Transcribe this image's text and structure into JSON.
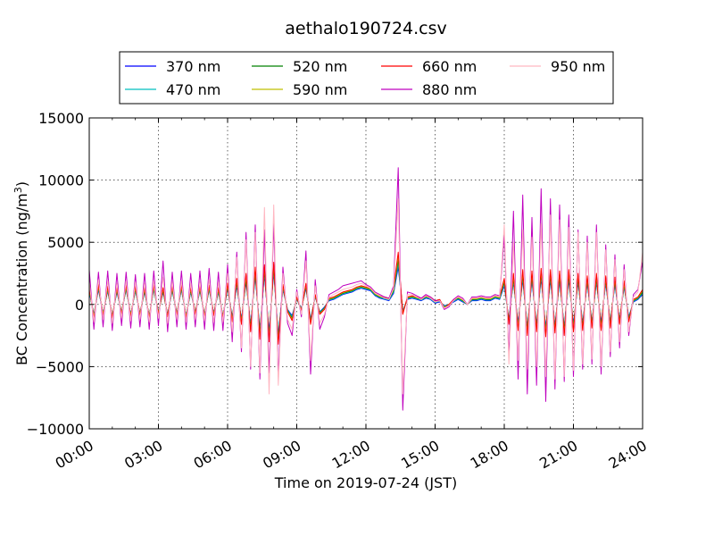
{
  "chart_data": {
    "type": "line",
    "title": "aethalo190724.csv",
    "xlabel": "Time on 2019-07-24 (JST)",
    "ylabel_main": "BC Concentration (ng/m",
    "ylabel_sup": "3",
    "ylabel_close": ")",
    "xlim": [
      0,
      24
    ],
    "ylim": [
      -10000,
      15000
    ],
    "grid": true,
    "legend_position": "top-center",
    "x_ticks": [
      0,
      3,
      6,
      9,
      12,
      15,
      18,
      21,
      24
    ],
    "x_tick_labels": [
      "00:00",
      "03:00",
      "06:00",
      "09:00",
      "12:00",
      "15:00",
      "18:00",
      "21:00",
      "24:00"
    ],
    "y_ticks": [
      -10000,
      -5000,
      0,
      5000,
      10000,
      15000
    ],
    "y_tick_labels": [
      "−10000",
      "−5000",
      "0",
      "5000",
      "10000",
      "15000"
    ],
    "x_hours": [
      0.0,
      0.2,
      0.4,
      0.6,
      0.8,
      1.0,
      1.2,
      1.4,
      1.6,
      1.8,
      2.0,
      2.2,
      2.4,
      2.6,
      2.8,
      3.0,
      3.2,
      3.4,
      3.6,
      3.8,
      4.0,
      4.2,
      4.4,
      4.6,
      4.8,
      5.0,
      5.2,
      5.4,
      5.6,
      5.8,
      6.0,
      6.2,
      6.4,
      6.6,
      6.8,
      7.0,
      7.2,
      7.4,
      7.6,
      7.8,
      8.0,
      8.2,
      8.4,
      8.6,
      8.8,
      9.0,
      9.2,
      9.4,
      9.6,
      9.8,
      10.0,
      10.2,
      10.4,
      10.6,
      10.8,
      11.0,
      11.2,
      11.4,
      11.6,
      11.8,
      12.0,
      12.2,
      12.4,
      12.6,
      12.8,
      13.0,
      13.2,
      13.4,
      13.6,
      13.8,
      14.0,
      14.2,
      14.4,
      14.6,
      14.8,
      15.0,
      15.2,
      15.4,
      15.6,
      15.8,
      16.0,
      16.2,
      16.4,
      16.6,
      16.8,
      17.0,
      17.2,
      17.4,
      17.6,
      17.8,
      18.0,
      18.2,
      18.4,
      18.6,
      18.8,
      19.0,
      19.2,
      19.4,
      19.6,
      19.8,
      20.0,
      20.2,
      20.4,
      20.6,
      20.8,
      21.0,
      21.2,
      21.4,
      21.6,
      21.8,
      22.0,
      22.2,
      22.4,
      22.6,
      22.8,
      23.0,
      23.2,
      23.4,
      23.6,
      23.8,
      24.0
    ],
    "series": [
      {
        "name": "370 nm",
        "color": "#0000ff",
        "values": [
          1000,
          -800,
          1200,
          -700,
          1100,
          -900,
          1000,
          -600,
          1200,
          -800,
          1100,
          -700,
          1000,
          -900,
          1200,
          -600,
          1000,
          -800,
          1100,
          -700,
          1200,
          -900,
          1000,
          -600,
          1100,
          -800,
          1200,
          -700,
          1000,
          -900,
          1300,
          -1000,
          1500,
          -1200,
          1800,
          -1600,
          2200,
          -2000,
          2400,
          -2200,
          2600,
          -2400,
          1200,
          -400,
          -900,
          400,
          -300,
          1300,
          -1200,
          600,
          -600,
          -200,
          300,
          400,
          600,
          800,
          900,
          1000,
          1200,
          1300,
          1200,
          1100,
          700,
          500,
          400,
          300,
          900,
          3000,
          -500,
          400,
          500,
          400,
          300,
          500,
          400,
          100,
          200,
          -100,
          0,
          200,
          400,
          200,
          0,
          300,
          300,
          400,
          300,
          300,
          500,
          400,
          1500,
          -1200,
          1800,
          -1500,
          2000,
          -1800,
          1900,
          -1600,
          2100,
          -1900,
          2000,
          -1700,
          1900,
          -1800,
          2000,
          -1600,
          1800,
          -1500,
          1700,
          -1400,
          1800,
          -1500,
          1700,
          -1400,
          1600,
          -1200,
          1400,
          -1000,
          200,
          400,
          800
        ]
      },
      {
        "name": "470 nm",
        "color": "#00bfbf",
        "values": [
          1100,
          -900,
          1300,
          -750,
          1150,
          -950,
          1100,
          -650,
          1250,
          -850,
          1150,
          -750,
          1100,
          -950,
          1250,
          -650,
          1050,
          -850,
          1150,
          -750,
          1250,
          -950,
          1050,
          -650,
          1150,
          -850,
          1250,
          -750,
          1050,
          -950,
          1400,
          -1100,
          1650,
          -1300,
          1950,
          -1750,
          2400,
          -2200,
          2600,
          -2400,
          2800,
          -2600,
          1300,
          -450,
          -1000,
          450,
          -350,
          1400,
          -1300,
          650,
          -650,
          -250,
          350,
          450,
          650,
          850,
          950,
          1050,
          1250,
          1350,
          1250,
          1150,
          750,
          550,
          450,
          350,
          1000,
          3300,
          -600,
          450,
          550,
          450,
          350,
          550,
          450,
          150,
          250,
          -150,
          0,
          250,
          450,
          250,
          0,
          350,
          350,
          450,
          350,
          350,
          550,
          450,
          1650,
          -1300,
          1950,
          -1650,
          2200,
          -1950,
          2100,
          -1750,
          2300,
          -2050,
          2200,
          -1850,
          2100,
          -1950,
          2200,
          -1750,
          1950,
          -1650,
          1850,
          -1500,
          1950,
          -1650,
          1850,
          -1500,
          1750,
          -1300,
          1500,
          -1100,
          250,
          450,
          900
        ]
      },
      {
        "name": "520 nm",
        "color": "#008000",
        "values": [
          1200,
          -950,
          1400,
          -800,
          1250,
          -1000,
          1150,
          -700,
          1350,
          -900,
          1250,
          -800,
          1150,
          -1000,
          1350,
          -700,
          1150,
          -900,
          1250,
          -800,
          1350,
          -1000,
          1150,
          -700,
          1250,
          -900,
          1350,
          -800,
          1150,
          -1000,
          1500,
          -1200,
          1800,
          -1400,
          2100,
          -1900,
          2600,
          -2400,
          2800,
          -2600,
          3000,
          -2800,
          1400,
          -500,
          -1100,
          500,
          -400,
          1500,
          -1400,
          700,
          -700,
          -300,
          400,
          500,
          700,
          900,
          1000,
          1100,
          1300,
          1400,
          1300,
          1200,
          800,
          600,
          500,
          400,
          1100,
          3600,
          -650,
          500,
          600,
          500,
          400,
          600,
          500,
          200,
          300,
          -200,
          0,
          300,
          500,
          300,
          0,
          400,
          400,
          500,
          400,
          400,
          600,
          500,
          1800,
          -1400,
          2100,
          -1800,
          2400,
          -2100,
          2300,
          -1900,
          2500,
          -2200,
          2400,
          -2000,
          2300,
          -2100,
          2400,
          -1900,
          2100,
          -1800,
          2000,
          -1600,
          2100,
          -1800,
          2000,
          -1600,
          1900,
          -1400,
          1600,
          -1200,
          300,
          500,
          1000
        ]
      },
      {
        "name": "590 nm",
        "color": "#bfbf00",
        "values": [
          1300,
          -1000,
          1500,
          -850,
          1350,
          -1050,
          1250,
          -750,
          1450,
          -950,
          1350,
          -850,
          1250,
          -1050,
          1450,
          -750,
          1250,
          -950,
          1350,
          -850,
          1450,
          -1050,
          1250,
          -750,
          1350,
          -950,
          1450,
          -850,
          1250,
          -1050,
          1600,
          -1300,
          1950,
          -1500,
          2300,
          -2050,
          2800,
          -2600,
          3000,
          -2800,
          3200,
          -3000,
          1500,
          -550,
          -1200,
          550,
          -450,
          1600,
          -1500,
          750,
          -750,
          -350,
          450,
          550,
          750,
          950,
          1050,
          1150,
          1350,
          1450,
          1350,
          1250,
          850,
          650,
          550,
          450,
          1200,
          3900,
          -700,
          550,
          650,
          550,
          450,
          650,
          550,
          250,
          350,
          -250,
          0,
          350,
          550,
          350,
          0,
          450,
          450,
          550,
          450,
          450,
          650,
          550,
          1950,
          -1500,
          2300,
          -1950,
          2600,
          -2300,
          2500,
          -2050,
          2700,
          -2400,
          2600,
          -2150,
          2500,
          -2300,
          2600,
          -2050,
          2300,
          -1950,
          2150,
          -1750,
          2300,
          -1950,
          2150,
          -1750,
          2050,
          -1500,
          1750,
          -1300,
          350,
          550,
          1100
        ]
      },
      {
        "name": "660 nm",
        "color": "#ff0000",
        "values": [
          1400,
          -1100,
          1600,
          -900,
          1450,
          -1100,
          1350,
          -800,
          1550,
          -1000,
          1450,
          -900,
          1350,
          -1100,
          1550,
          -800,
          1350,
          -1000,
          1450,
          -900,
          1550,
          -1100,
          1350,
          -800,
          1450,
          -1000,
          1550,
          -900,
          1350,
          -1100,
          1700,
          -1400,
          2100,
          -1600,
          2500,
          -2200,
          3000,
          -2800,
          3200,
          -3000,
          3400,
          -3200,
          1600,
          -600,
          -1300,
          600,
          -500,
          1700,
          -1600,
          800,
          -800,
          -400,
          500,
          600,
          800,
          1000,
          1100,
          1200,
          1400,
          1500,
          1400,
          1300,
          900,
          700,
          600,
          500,
          1300,
          4200,
          -800,
          600,
          700,
          600,
          500,
          700,
          600,
          300,
          400,
          -300,
          0,
          400,
          600,
          400,
          0,
          500,
          500,
          600,
          500,
          500,
          700,
          600,
          2100,
          -1600,
          2500,
          -2100,
          2800,
          -2500,
          2700,
          -2200,
          2900,
          -2600,
          2800,
          -2300,
          2700,
          -2500,
          2800,
          -2200,
          2500,
          -2100,
          2300,
          -1900,
          2500,
          -2100,
          2300,
          -1900,
          2200,
          -1600,
          1900,
          -1400,
          400,
          600,
          1200
        ]
      },
      {
        "name": "880 nm",
        "color": "#bf00bf",
        "values": [
          2800,
          -2000,
          2600,
          -1800,
          2700,
          -2100,
          2500,
          -1700,
          2600,
          -1900,
          2400,
          -1800,
          2500,
          -2000,
          2700,
          -1700,
          3500,
          -2200,
          2600,
          -1800,
          2700,
          -2000,
          2500,
          -1800,
          2700,
          -2000,
          2900,
          -2100,
          2600,
          -2100,
          3200,
          -3000,
          4200,
          -3800,
          5800,
          -5200,
          6400,
          -6000,
          6000,
          -5500,
          6500,
          -5800,
          3000,
          -1500,
          -2500,
          1200,
          -1000,
          4300,
          -5600,
          2000,
          -2000,
          -1000,
          800,
          1000,
          1200,
          1500,
          1600,
          1700,
          1800,
          1900,
          1600,
          1400,
          1000,
          800,
          600,
          500,
          1500,
          11000,
          -8500,
          1000,
          900,
          700,
          500,
          800,
          600,
          300,
          300,
          -400,
          -200,
          400,
          700,
          500,
          0,
          600,
          600,
          700,
          600,
          600,
          800,
          700,
          5500,
          -4200,
          7500,
          -6000,
          8800,
          -7200,
          7000,
          -6500,
          9300,
          -7800,
          8500,
          -6800,
          8000,
          -6200,
          7200,
          -5800,
          6000,
          -5200,
          5500,
          -4800,
          6400,
          -5600,
          4800,
          -4200,
          4000,
          -3500,
          3200,
          -2500,
          800,
          1200,
          3500
        ]
      },
      {
        "name": "950 nm",
        "color": "#ffb6c1",
        "values": [
          1800,
          -1400,
          2000,
          -1200,
          1900,
          -1500,
          1700,
          -1100,
          1900,
          -1300,
          1800,
          -1200,
          1700,
          -1400,
          1900,
          -1100,
          2200,
          -1500,
          1800,
          -1200,
          1900,
          -1400,
          1700,
          -1200,
          1800,
          -1300,
          2000,
          -1400,
          1800,
          -1400,
          2500,
          -2200,
          3800,
          -3500,
          5200,
          -5000,
          5800,
          -5500,
          7800,
          -7200,
          8000,
          -6500,
          2500,
          -1200,
          -2000,
          1000,
          -800,
          3500,
          -4500,
          1500,
          -1500,
          -800,
          600,
          800,
          1000,
          1200,
          1300,
          1400,
          1600,
          1700,
          1500,
          1300,
          900,
          700,
          500,
          400,
          1300,
          8500,
          -7200,
          800,
          800,
          600,
          400,
          700,
          500,
          200,
          300,
          -300,
          -100,
          300,
          600,
          400,
          0,
          500,
          500,
          600,
          500,
          500,
          700,
          600,
          6400,
          -4800,
          5000,
          -4500,
          6000,
          -5200,
          5400,
          -5000,
          6500,
          -5800,
          7200,
          -6000,
          6800,
          -5800,
          6200,
          -5300,
          5800,
          -4800,
          5000,
          -4400,
          5800,
          -5000,
          4400,
          -3800,
          3600,
          -3000,
          2800,
          -2200,
          600,
          1000,
          4200
        ]
      }
    ]
  }
}
